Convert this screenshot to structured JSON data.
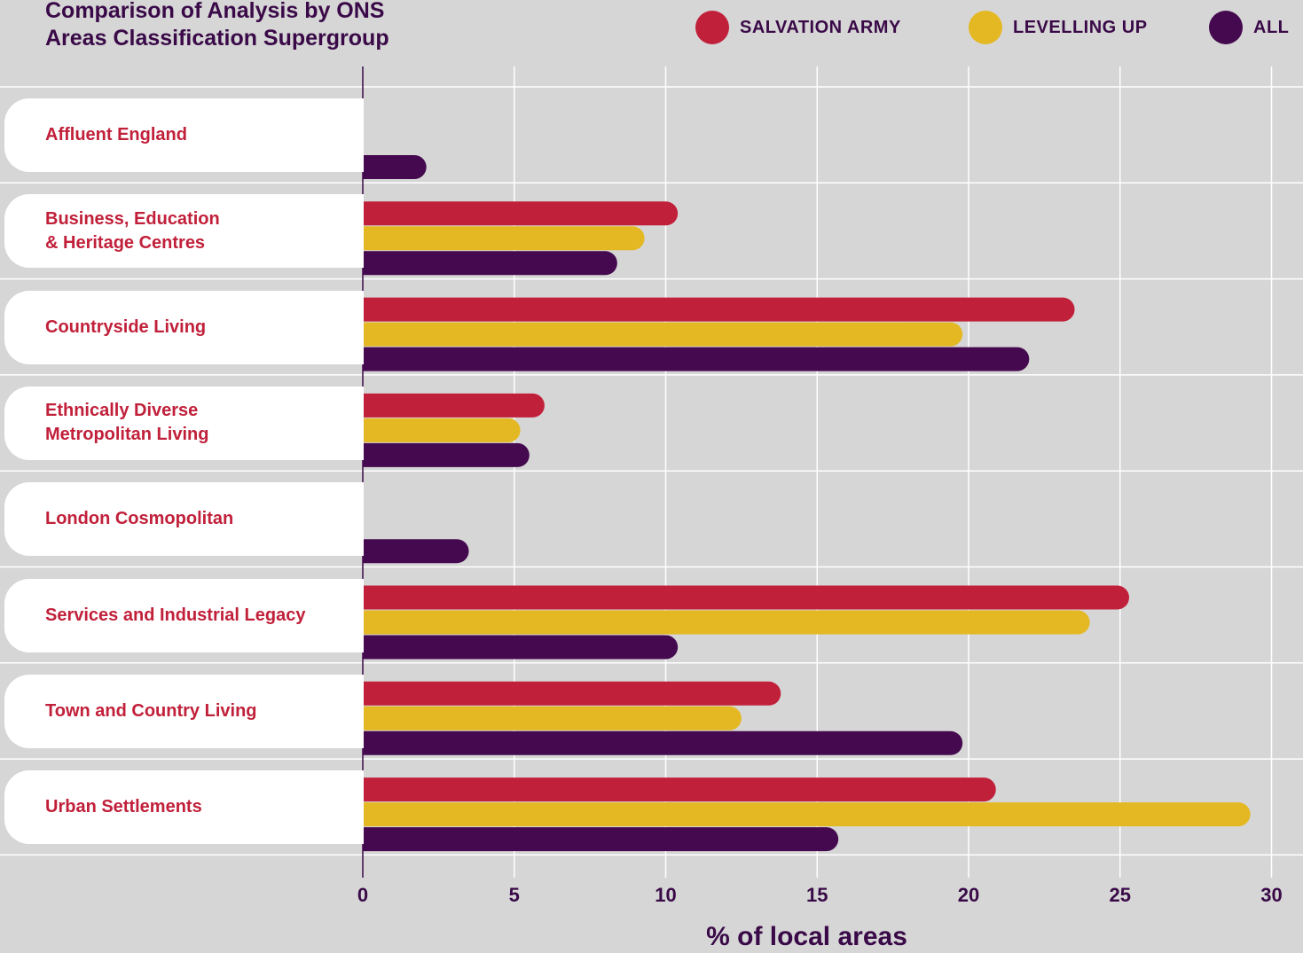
{
  "chart_data": {
    "type": "bar",
    "orientation": "horizontal",
    "title": "Comparison of Analysis by ONS Areas Classification Supergroup",
    "title_lines": [
      "Comparison of Analysis by ONS",
      "Areas Classification Supergroup"
    ],
    "xlabel": "% of local areas",
    "ylabel": "",
    "xlim": [
      0,
      30
    ],
    "xticks": [
      0,
      5,
      10,
      15,
      20,
      25,
      30
    ],
    "grid": true,
    "legend_position": "top-right",
    "categories": [
      "Affluent England",
      "Business, Education\n& Heritage Centres",
      "Countryside Living",
      "Ethnically Diverse\nMetropolitan Living",
      "London Cosmopolitan",
      "Services and Industrial Legacy",
      "Town and Country Living",
      "Urban Settlements"
    ],
    "series": [
      {
        "name": "SALVATION ARMY",
        "color": "#c1203a",
        "values": [
          0,
          10.4,
          23.5,
          6.0,
          0,
          25.3,
          13.8,
          20.9
        ]
      },
      {
        "name": "LEVELLING UP",
        "color": "#e4b822",
        "values": [
          0,
          9.3,
          19.8,
          5.2,
          0,
          24.0,
          12.5,
          29.3
        ]
      },
      {
        "name": "ALL",
        "color": "#44094e",
        "values": [
          2.1,
          8.4,
          22.0,
          5.5,
          3.5,
          10.4,
          19.8,
          15.7
        ]
      }
    ]
  }
}
